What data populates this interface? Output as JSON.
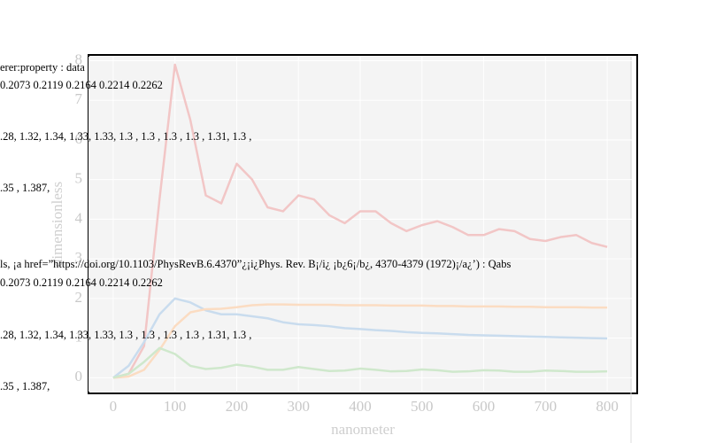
{
  "chart_data": {
    "type": "line",
    "x_label": "nanometer",
    "y_label": "dimensionless",
    "x": [
      0,
      25,
      50,
      75,
      100,
      125,
      150,
      175,
      200,
      225,
      250,
      275,
      300,
      325,
      350,
      375,
      400,
      425,
      450,
      475,
      500,
      525,
      550,
      575,
      600,
      625,
      650,
      675,
      700,
      725,
      750,
      775,
      800
    ],
    "series": [
      {
        "color": "#f2c6c6",
        "values": [
          0,
          0.1,
          0.8,
          4.5,
          7.9,
          6.5,
          4.6,
          4.4,
          5.4,
          5.0,
          4.3,
          4.2,
          4.6,
          4.5,
          4.1,
          3.9,
          4.2,
          4.2,
          3.9,
          3.7,
          3.85,
          3.95,
          3.8,
          3.6,
          3.6,
          3.75,
          3.7,
          3.5,
          3.45,
          3.55,
          3.6,
          3.4,
          3.3
        ]
      },
      {
        "color": "#c9dcee",
        "values": [
          0,
          0.3,
          0.9,
          1.6,
          2.0,
          1.9,
          1.7,
          1.6,
          1.6,
          1.55,
          1.5,
          1.4,
          1.35,
          1.33,
          1.3,
          1.25,
          1.23,
          1.2,
          1.18,
          1.15,
          1.13,
          1.12,
          1.1,
          1.08,
          1.07,
          1.06,
          1.05,
          1.04,
          1.03,
          1.02,
          1.01,
          1.0,
          0.99
        ]
      },
      {
        "color": "#fbdcc2",
        "values": [
          0,
          0.03,
          0.2,
          0.7,
          1.3,
          1.65,
          1.73,
          1.74,
          1.78,
          1.83,
          1.85,
          1.85,
          1.84,
          1.84,
          1.84,
          1.83,
          1.83,
          1.83,
          1.82,
          1.82,
          1.82,
          1.81,
          1.81,
          1.8,
          1.8,
          1.8,
          1.79,
          1.79,
          1.78,
          1.78,
          1.78,
          1.77,
          1.77
        ]
      },
      {
        "color": "#cfe8cc",
        "values": [
          0,
          0.1,
          0.4,
          0.75,
          0.6,
          0.3,
          0.22,
          0.25,
          0.33,
          0.28,
          0.2,
          0.2,
          0.27,
          0.22,
          0.17,
          0.18,
          0.23,
          0.2,
          0.16,
          0.17,
          0.21,
          0.19,
          0.15,
          0.16,
          0.19,
          0.18,
          0.15,
          0.15,
          0.18,
          0.17,
          0.15,
          0.15,
          0.16
        ]
      }
    ],
    "xlim": [
      -40,
      840
    ],
    "ylim": [
      -0.35,
      8.1
    ],
    "xticks": [
      0,
      100,
      200,
      300,
      400,
      500,
      600,
      700,
      800
    ],
    "yticks": [
      0,
      1,
      2,
      3,
      4,
      5,
      6,
      7,
      8
    ],
    "grid": true
  },
  "overlay_text": [
    "erer:property : data",
    "0.2073 0.2119 0.2164 0.2214 0.2262",
    ".28, 1.32, 1.34, 1.33, 1.33, 1.3 , 1.3 , 1.3 , 1.3 , 1.31, 1.3 ,",
    ".35 ,  1.387,",
    "ls, ¡a href=”https://doi.org/10.1103/PhysRevB.6.4370”¿¡i¿Phys. Rev. B¡/i¿ ¡b¿6¡/b¿, 4370-4379 (1972)¡/a¿’) : Qabs",
    "0.2073 0.2119 0.2164 0.2214 0.2262",
    ".28, 1.32, 1.34, 1.33, 1.33, 1.3 , 1.3 , 1.3 , 1.3 , 1.31, 1.3 ,",
    ".35 ,  1.387,"
  ]
}
